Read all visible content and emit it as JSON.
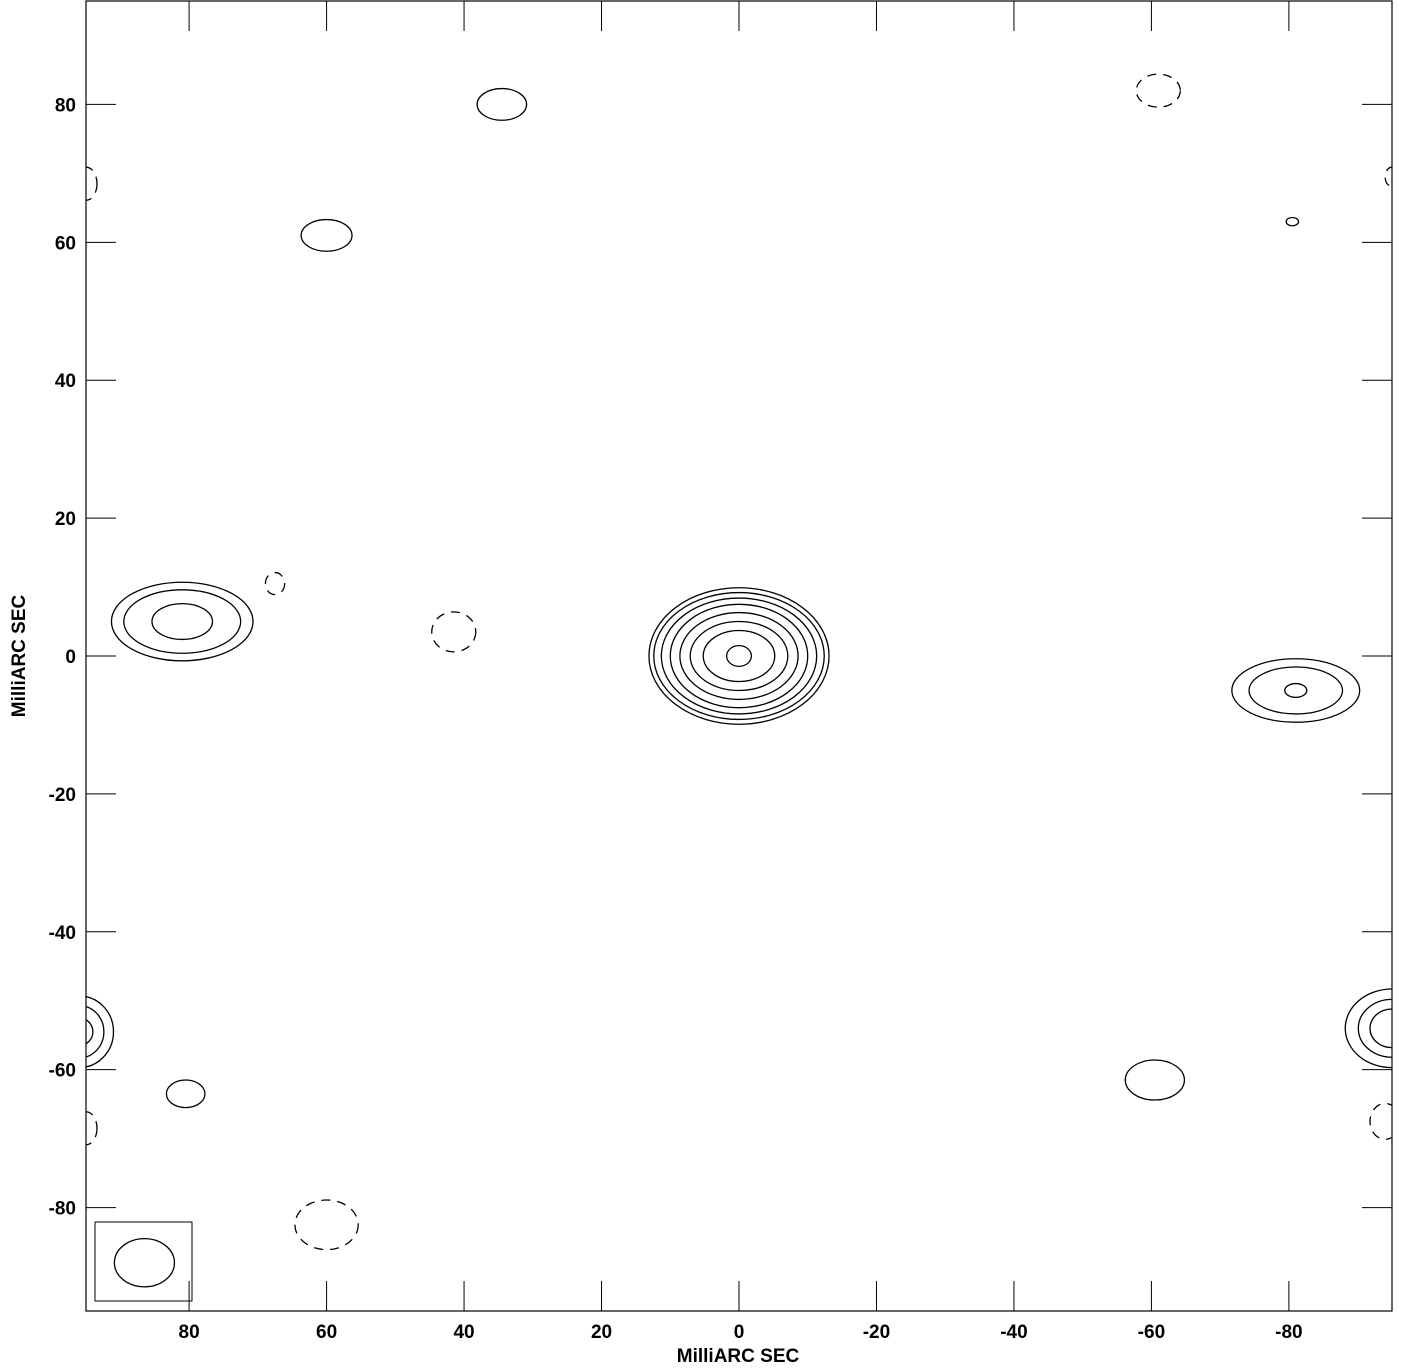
{
  "chart_data": {
    "type": "contour",
    "xlabel": "MilliARC SEC",
    "ylabel": "MilliARC SEC",
    "xlim": [
      95,
      -95
    ],
    "ylim": [
      -95,
      95
    ],
    "x_ticks": [
      80,
      60,
      40,
      20,
      0,
      -20,
      -40,
      -60,
      -80
    ],
    "y_ticks": [
      80,
      60,
      40,
      20,
      0,
      -20,
      -40,
      -60,
      -80
    ],
    "x_tick_labels": [
      "80",
      "60",
      "40",
      "20",
      "0",
      "-20",
      "-40",
      "-60",
      "-80"
    ],
    "y_tick_labels": [
      "80",
      "60",
      "40",
      "20",
      "0",
      "-20",
      "-40",
      "-60",
      "-80"
    ],
    "x_reversed": true,
    "line_color": "#000000",
    "beam": {
      "x": 86.5,
      "y": -88,
      "major": 9.5,
      "minor": 7.6,
      "angle": 0
    },
    "contour_groups": [
      {
        "name": "central-source",
        "x": 0,
        "y": 0,
        "levels": [
          {
            "rx": 13.1,
            "ry": 9.9,
            "dashed": false
          },
          {
            "rx": 12.4,
            "ry": 9.2,
            "dashed": false
          },
          {
            "rx": 11.3,
            "ry": 8.4,
            "dashed": false
          },
          {
            "rx": 10.0,
            "ry": 7.5,
            "dashed": false
          },
          {
            "rx": 8.6,
            "ry": 6.3,
            "dashed": false
          },
          {
            "rx": 7.1,
            "ry": 5.0,
            "dashed": false
          },
          {
            "rx": 5.2,
            "ry": 3.7,
            "dashed": false
          },
          {
            "rx": 1.8,
            "ry": 1.5,
            "dashed": false
          }
        ]
      },
      {
        "name": "left-source",
        "x": 81,
        "y": 5,
        "levels": [
          {
            "rx": 10.3,
            "ry": 5.7,
            "dashed": false
          },
          {
            "rx": 8.5,
            "ry": 4.6,
            "dashed": false
          },
          {
            "rx": 4.4,
            "ry": 2.6,
            "dashed": false
          }
        ]
      },
      {
        "name": "right-source",
        "x": -81,
        "y": -5,
        "levels": [
          {
            "rx": 9.3,
            "ry": 4.6,
            "dashed": false
          },
          {
            "rx": 6.8,
            "ry": 3.4,
            "dashed": false
          },
          {
            "rx": 1.6,
            "ry": 1.0,
            "dashed": false
          }
        ]
      },
      {
        "name": "left-edge-source",
        "x": 96,
        "y": -54.5,
        "levels": [
          {
            "rx": 5.0,
            "ry": 5.2,
            "dashed": false
          },
          {
            "rx": 3.6,
            "ry": 3.8,
            "dashed": false
          },
          {
            "rx": 2.0,
            "ry": 2.0,
            "dashed": false
          }
        ]
      },
      {
        "name": "right-edge-source",
        "x": -95,
        "y": -54,
        "levels": [
          {
            "rx": 6.8,
            "ry": 5.7,
            "dashed": false
          },
          {
            "rx": 4.9,
            "ry": 4.2,
            "dashed": false
          },
          {
            "rx": 3.2,
            "ry": 2.8,
            "dashed": false
          }
        ]
      },
      {
        "name": "blob-a",
        "x": 34.5,
        "y": 80,
        "levels": [
          {
            "rx": 3.6,
            "ry": 2.3,
            "dashed": false
          }
        ]
      },
      {
        "name": "blob-b",
        "x": 60,
        "y": 61,
        "levels": [
          {
            "rx": 3.7,
            "ry": 2.3,
            "dashed": false
          }
        ]
      },
      {
        "name": "blob-c",
        "x": -80.5,
        "y": 63,
        "levels": [
          {
            "rx": 0.9,
            "ry": 0.6,
            "dashed": false
          }
        ]
      },
      {
        "name": "blob-d",
        "x": -60.5,
        "y": -61.5,
        "levels": [
          {
            "rx": 4.3,
            "ry": 2.9,
            "dashed": false
          }
        ]
      },
      {
        "name": "blob-e",
        "x": 80.5,
        "y": -63.5,
        "levels": [
          {
            "rx": 2.8,
            "ry": 2.0,
            "dashed": false
          }
        ]
      },
      {
        "name": "neg-a",
        "x": -61,
        "y": 82,
        "levels": [
          {
            "rx": 3.2,
            "ry": 2.4,
            "dashed": true
          }
        ]
      },
      {
        "name": "neg-b",
        "x": 41.5,
        "y": 3.5,
        "levels": [
          {
            "rx": 3.2,
            "ry": 2.9,
            "dashed": true
          }
        ]
      },
      {
        "name": "neg-c",
        "x": 60,
        "y": -82.5,
        "levels": [
          {
            "rx": 4.6,
            "ry": 3.6,
            "dashed": true
          }
        ]
      },
      {
        "name": "neg-d",
        "x": -94,
        "y": -67.5,
        "levels": [
          {
            "rx": 2.2,
            "ry": 2.6,
            "dashed": true
          }
        ]
      },
      {
        "name": "neg-e",
        "x": 95,
        "y": 68.5,
        "levels": [
          {
            "rx": 1.6,
            "ry": 2.4,
            "dashed": true
          }
        ]
      },
      {
        "name": "neg-f",
        "x": 95,
        "y": -68.5,
        "levels": [
          {
            "rx": 1.6,
            "ry": 2.4,
            "dashed": true
          }
        ]
      },
      {
        "name": "neg-g",
        "x": -95,
        "y": 69.5,
        "levels": [
          {
            "rx": 1.0,
            "ry": 1.4,
            "dashed": true
          }
        ]
      },
      {
        "name": "neg-h",
        "x": 67.5,
        "y": 10.5,
        "levels": [
          {
            "rx": 1.4,
            "ry": 1.6,
            "dashed": true
          }
        ]
      }
    ]
  }
}
